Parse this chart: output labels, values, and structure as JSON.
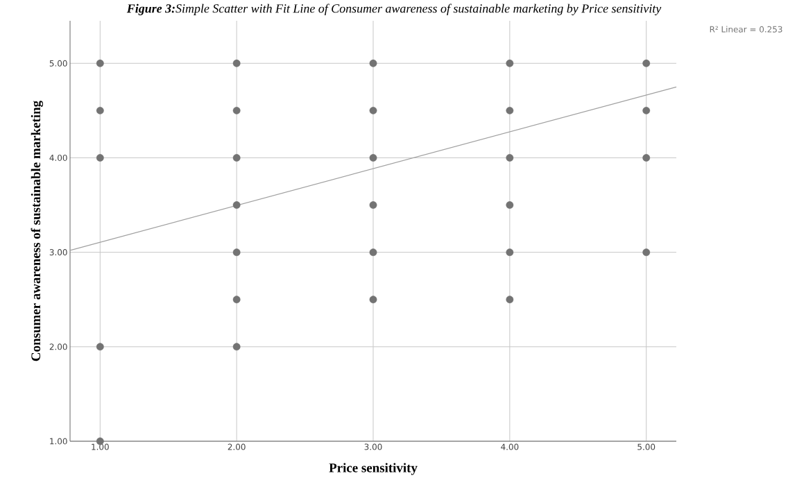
{
  "chart_data": {
    "type": "scatter",
    "title": "**Figure 3:**Simple Scatter with Fit Line of Consumer awareness of sustainable marketing by Price sensitivity",
    "xlabel": "Price sensitivity",
    "ylabel": "Consumer awareness of sustainable marketing",
    "annotations": [
      "R² Linear = 0.253"
    ],
    "xlim": [
      0.78,
      5.22
    ],
    "ylim": [
      1,
      5.45
    ],
    "xticks": [
      {
        "value": 1,
        "label": "1.00"
      },
      {
        "value": 2,
        "label": "2.00"
      },
      {
        "value": 3,
        "label": "3.00"
      },
      {
        "value": 4,
        "label": "4.00"
      },
      {
        "value": 5,
        "label": "5.00"
      }
    ],
    "yticks": [
      {
        "value": 1,
        "label": "1.00"
      },
      {
        "value": 2,
        "label": "2.00"
      },
      {
        "value": 3,
        "label": "3.00"
      },
      {
        "value": 4,
        "label": "4.00"
      },
      {
        "value": 5,
        "label": "5.00"
      }
    ],
    "grid": true,
    "series": [
      {
        "marker": "circle",
        "color": "#737373",
        "x": [
          1,
          1,
          1,
          1,
          1,
          2,
          2,
          2,
          2,
          2,
          2,
          2,
          3,
          3,
          3,
          3,
          3,
          3,
          4,
          4,
          4,
          4,
          4,
          4,
          5,
          5,
          5,
          5
        ],
        "values": [
          5,
          4.5,
          4,
          2,
          1,
          5,
          4.5,
          4,
          3.5,
          3,
          2.5,
          2,
          5,
          4.5,
          4,
          3.5,
          3,
          2.5,
          5,
          4.5,
          4,
          3.5,
          3,
          2.5,
          5,
          4.5,
          4,
          3
        ]
      },
      {
        "type": "line",
        "marker": "none",
        "color": "#a0a0a0",
        "x": [
          0.78,
          5.22
        ],
        "values": [
          3.02,
          4.75
        ]
      }
    ]
  }
}
